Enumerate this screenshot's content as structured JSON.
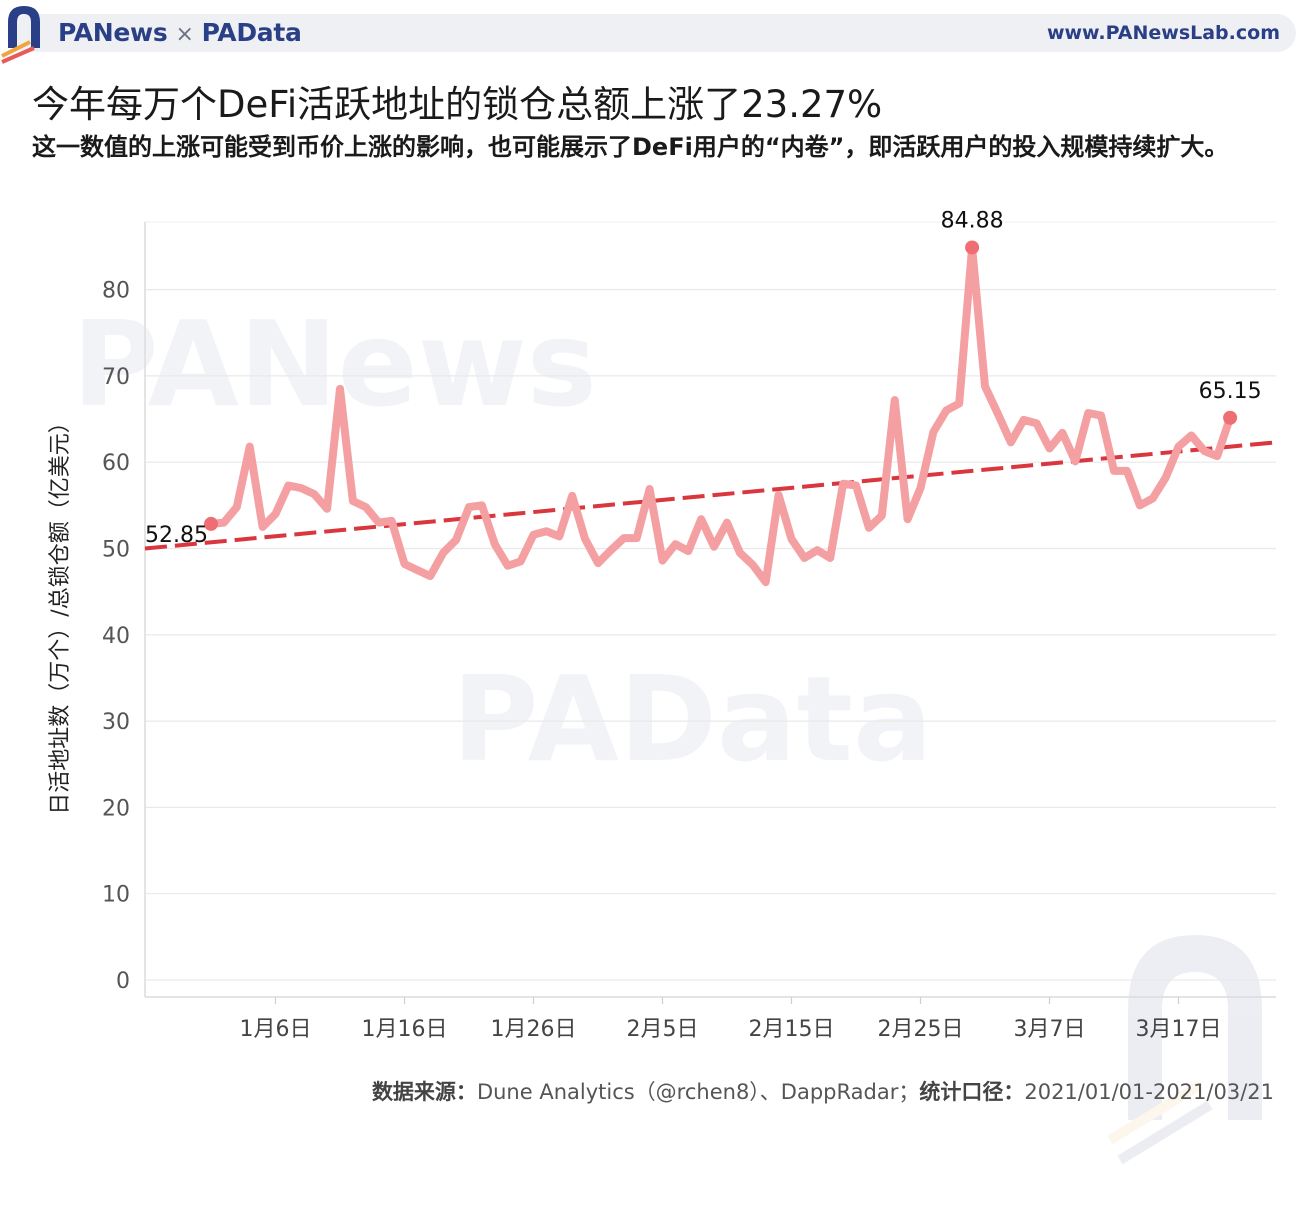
{
  "header": {
    "brand_left": "PANews",
    "brand_times": "×",
    "brand_right": "PAData",
    "site": "www.PANewsLab.com"
  },
  "title": "今年每万个DeFi活跃地址的锁仓总额上涨了23.27%",
  "subtitle": "这一数值的上涨可能受到币价上涨的影响，也可能展示了DeFi用户的“内卷”，即活跃用户的投入规模持续扩大。",
  "source": {
    "label": "数据来源：",
    "text": "Dune Analytics（@rchen8）、DappRadar；",
    "label2": "统计口径：",
    "text2": "2021/01/01-2021/03/21"
  },
  "watermarks": [
    "PANews",
    "PAData"
  ],
  "colors": {
    "line": "#f4a0a3",
    "trend": "#d9363e",
    "grid": "#e9e9e9",
    "brand": "#2b3f86"
  },
  "chart_data": {
    "type": "line",
    "ylabel": "日活地址数（万个）/总锁仓额（亿美元）",
    "ylim": [
      0,
      90
    ],
    "yticks": [
      0,
      10,
      20,
      30,
      40,
      50,
      60,
      70,
      80
    ],
    "xtick_labels": [
      {
        "day": 6,
        "label": "1月6日"
      },
      {
        "day": 16,
        "label": "1月16日"
      },
      {
        "day": 26,
        "label": "1月26日"
      },
      {
        "day": 36,
        "label": "2月5日"
      },
      {
        "day": 46,
        "label": "2月15日"
      },
      {
        "day": 56,
        "label": "2月25日"
      },
      {
        "day": 66,
        "label": "3月7日"
      },
      {
        "day": 76,
        "label": "3月17日"
      }
    ],
    "x_start_day": 1,
    "x_end_day": 80,
    "series": [
      {
        "values": [
          52.85,
          53.0,
          54.8,
          61.8,
          52.5,
          54.0,
          57.3,
          57.0,
          56.3,
          54.6,
          68.5,
          55.5,
          54.8,
          53.0,
          53.2,
          48.2,
          47.5,
          46.8,
          49.5,
          51.0,
          54.8,
          55.0,
          50.5,
          48.0,
          48.5,
          51.6,
          52.0,
          51.4,
          56.1,
          51.1,
          48.3,
          49.8,
          51.2,
          51.2,
          56.9,
          48.6,
          50.5,
          49.7,
          53.4,
          50.2,
          53.0,
          49.5,
          48.1,
          46.1,
          56.2,
          51.1,
          48.9,
          49.8,
          48.9,
          57.5,
          57.3,
          52.4,
          53.8,
          67.2,
          53.4,
          57.0,
          63.5,
          66.0,
          66.8,
          84.88,
          68.8,
          65.6,
          62.3,
          64.9,
          64.5,
          61.6,
          63.4,
          60.1,
          65.7,
          65.4,
          59.0,
          59.0,
          55.0,
          55.8,
          58.2,
          61.8,
          63.1,
          61.3,
          60.7,
          65.15
        ]
      }
    ],
    "trendline": {
      "start": 50.0,
      "end": 62.3,
      "style": "dashed"
    },
    "annotations": [
      {
        "index": 0,
        "label": "52.85"
      },
      {
        "index": 59,
        "label": "84.88"
      },
      {
        "index": 79,
        "label": "65.15"
      }
    ]
  }
}
